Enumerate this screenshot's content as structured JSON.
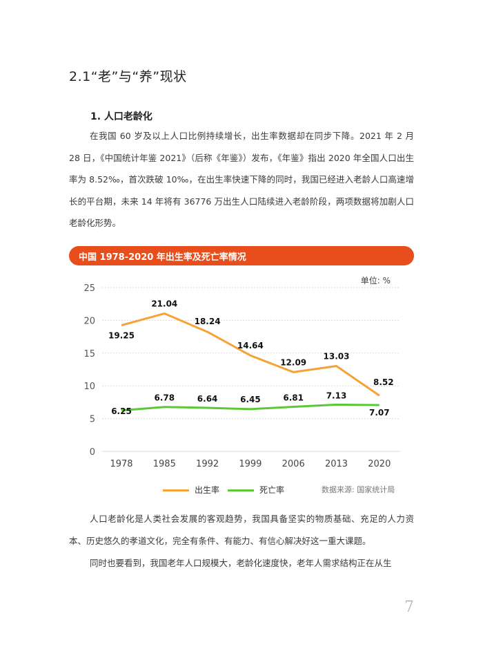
{
  "section": {
    "title": "2.1“老”与“养”现状"
  },
  "subsection": {
    "title": "1. 人口老龄化"
  },
  "paragraphs": [
    "在我国 60 岁及以上人口比例持续增长，出生率数据却在同步下降。2021 年 2 月 28 日，《中国统计年鉴 2021》（后称《年鉴》）发布，《年鉴》指出 2020 年全国人口出生率为 8.52‰，首次跌破 10‰，在出生率快速下降的同时，我国已经进入老龄人口高速增长的平台期，未来 14 年将有 36776 万出生人口陆续进入老龄阶段，两项数据将加剧人口老龄化形势。",
    "人口老龄化是人类社会发展的客观趋势，我国具备坚实的物质基础、充足的人力资本、历史悠久的孝道文化，完全有条件、有能力、有信心解决好这一重大课题。",
    "同时也要看到，我国老年人口规模大，老龄化速度快，老年人需求结构正在从生"
  ],
  "chart_banner": "中国 1978-2020 年出生率及死亡率情况",
  "chart_data": {
    "type": "line",
    "unit_label": "单位: %",
    "x": [
      "1978",
      "1985",
      "1992",
      "1999",
      "2006",
      "2013",
      "2020"
    ],
    "ylim": [
      0,
      25
    ],
    "yticks": [
      0,
      5,
      10,
      15,
      20,
      25
    ],
    "grid": true,
    "legend_position": "bottom",
    "series": [
      {
        "name": "出生率",
        "color": "#f5a236",
        "values": [
          19.25,
          21.04,
          18.24,
          14.64,
          12.09,
          13.03,
          8.52
        ],
        "labels": [
          "19.25",
          "21.04",
          "18.24",
          "14.64",
          "12.09",
          "13.03",
          "8.52"
        ]
      },
      {
        "name": "死亡率",
        "color": "#5cc738",
        "values": [
          6.25,
          6.78,
          6.64,
          6.45,
          6.81,
          7.13,
          7.07
        ],
        "labels": [
          "6.25",
          "6.78",
          "6.64",
          "6.45",
          "6.81",
          "7.13",
          "7.07"
        ]
      }
    ],
    "source": "数据来源: 国家统计局"
  },
  "page_number": "7"
}
